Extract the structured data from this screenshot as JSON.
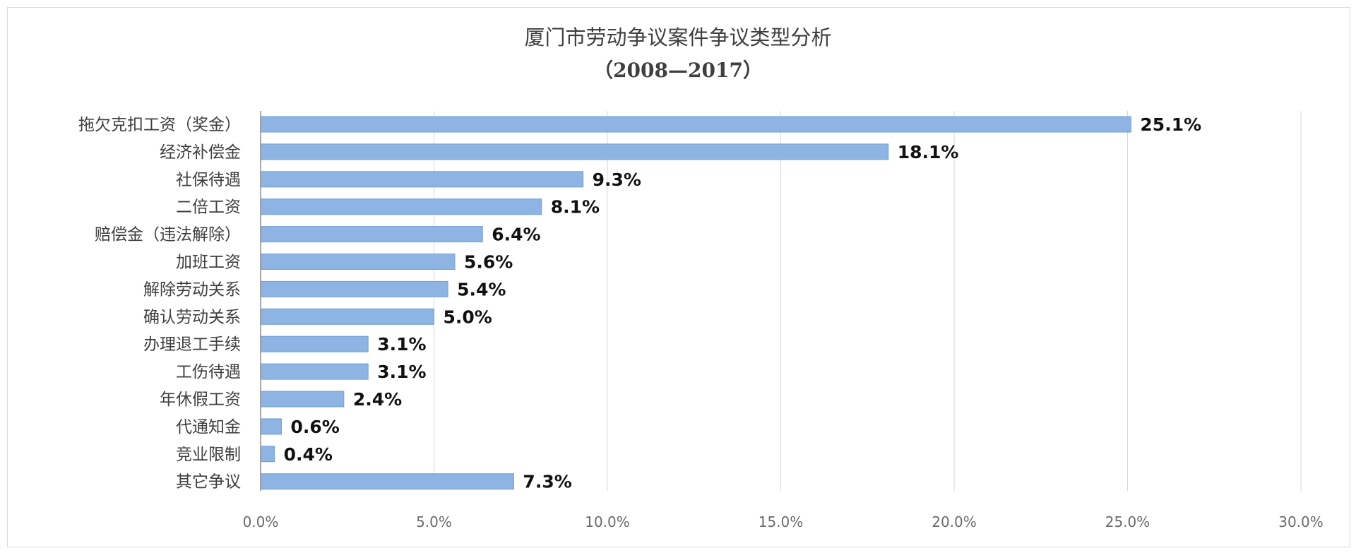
{
  "chart_data": {
    "type": "bar",
    "orientation": "horizontal",
    "title": "厦门市劳动争议案件争议类型分析",
    "subtitle": "（2008—2017）",
    "categories": [
      "拖欠克扣工资（奖金）",
      "经济补偿金",
      "社保待遇",
      "二倍工资",
      "赔偿金（违法解除）",
      "加班工资",
      "解除劳动关系",
      "确认劳动关系",
      "办理退工手续",
      "工伤待遇",
      "年休假工资",
      "代通知金",
      "竞业限制",
      "其它争议"
    ],
    "values": [
      25.1,
      18.1,
      9.3,
      8.1,
      6.4,
      5.6,
      5.4,
      5.0,
      3.1,
      3.1,
      2.4,
      0.6,
      0.4,
      7.3
    ],
    "value_labels": [
      "25.1%",
      "18.1%",
      "9.3%",
      "8.1%",
      "6.4%",
      "5.6%",
      "5.4%",
      "5.0%",
      "3.1%",
      "3.1%",
      "2.4%",
      "0.6%",
      "0.4%",
      "7.3%"
    ],
    "xlim": [
      0,
      30
    ],
    "xticks": [
      0,
      5,
      10,
      15,
      20,
      25,
      30
    ],
    "xtick_labels": [
      "0.0%",
      "5.0%",
      "10.0%",
      "15.0%",
      "20.0%",
      "25.0%",
      "30.0%"
    ],
    "grid": "vertical",
    "legend": "none",
    "colors": {
      "bar": "#8db4e2",
      "bar_edge": "#6f9fd6",
      "grid": "#d9d9d9"
    }
  }
}
